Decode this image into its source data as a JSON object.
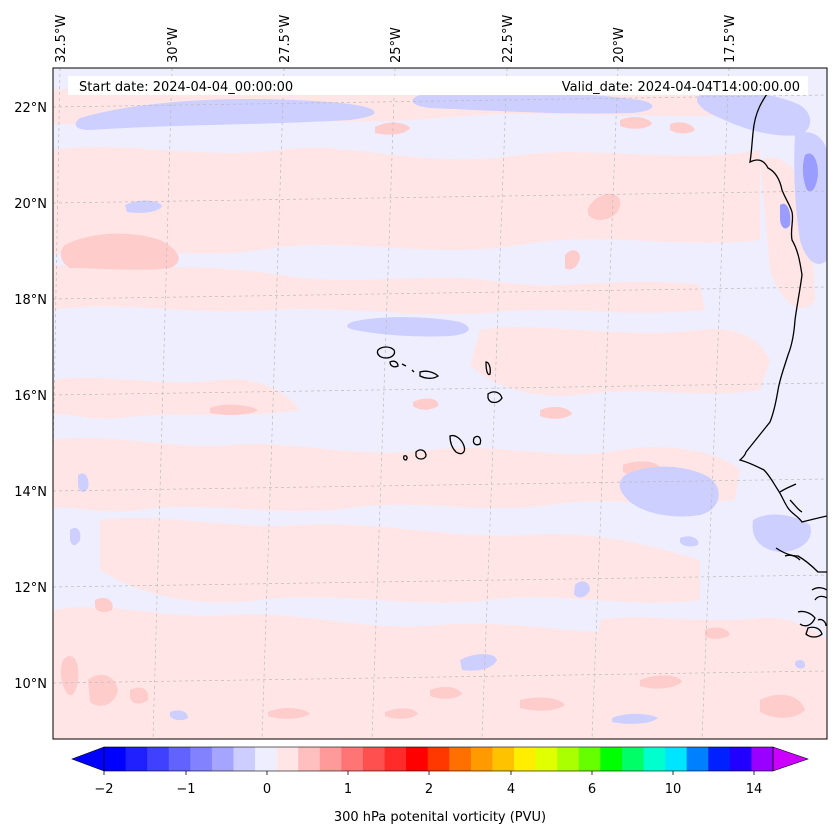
{
  "map": {
    "title_left": "Start date: 2024-04-04_00:00:00",
    "title_right": "Valid_date: 2024-04-04T14:00:00.00",
    "extent": {
      "lon_min": -32.6,
      "lon_max": -15.2,
      "lat_min": 8.9,
      "lat_max": 22.8
    },
    "lon_ticks": [
      {
        "value": -32.5,
        "label": "32.5°W"
      },
      {
        "value": -30,
        "label": "30°W"
      },
      {
        "value": -27.5,
        "label": "27.5°W"
      },
      {
        "value": -25,
        "label": "25°W"
      },
      {
        "value": -22.5,
        "label": "22.5°W"
      },
      {
        "value": -20,
        "label": "20°W"
      },
      {
        "value": -17.5,
        "label": "17.5°W"
      }
    ],
    "lat_ticks": [
      {
        "value": 22,
        "label": "22°N"
      },
      {
        "value": 20,
        "label": "20°N"
      },
      {
        "value": 18,
        "label": "18°N"
      },
      {
        "value": 16,
        "label": "16°N"
      },
      {
        "value": 14,
        "label": "14°N"
      },
      {
        "value": 12,
        "label": "12°N"
      },
      {
        "value": 10,
        "label": "10°N"
      }
    ],
    "background_color": "#eeeeff",
    "positive_color": "#ffe5e5",
    "positive2_color": "#ffcccc",
    "negative_color": "#cccfff",
    "negative2_color": "#9a9cff"
  },
  "colorbar": {
    "label": "300 hPa potenital vorticity (PVU)",
    "tick_labels": [
      "−2",
      "−1",
      "0",
      "1",
      "2",
      "4",
      "6",
      "10",
      "14"
    ],
    "colors": [
      "#0000ff",
      "#2020ff",
      "#4040ff",
      "#6262ff",
      "#8282ff",
      "#a5a5ff",
      "#cdcdff",
      "#eeeeff",
      "#ffe5e5",
      "#ffbfbf",
      "#ff9a9a",
      "#ff7474",
      "#ff5050",
      "#ff2a2a",
      "#ff0000",
      "#ff3800",
      "#ff7000",
      "#ff9a00",
      "#ffc200",
      "#ffee00",
      "#e0ff00",
      "#aaff00",
      "#66ff00",
      "#00ff00",
      "#00ff66",
      "#00ffcc",
      "#00e5ff",
      "#0080ff",
      "#0020ff",
      "#2200ff",
      "#9900ff"
    ],
    "over_color": "#cc00ff",
    "under_color": "#0000ff"
  }
}
